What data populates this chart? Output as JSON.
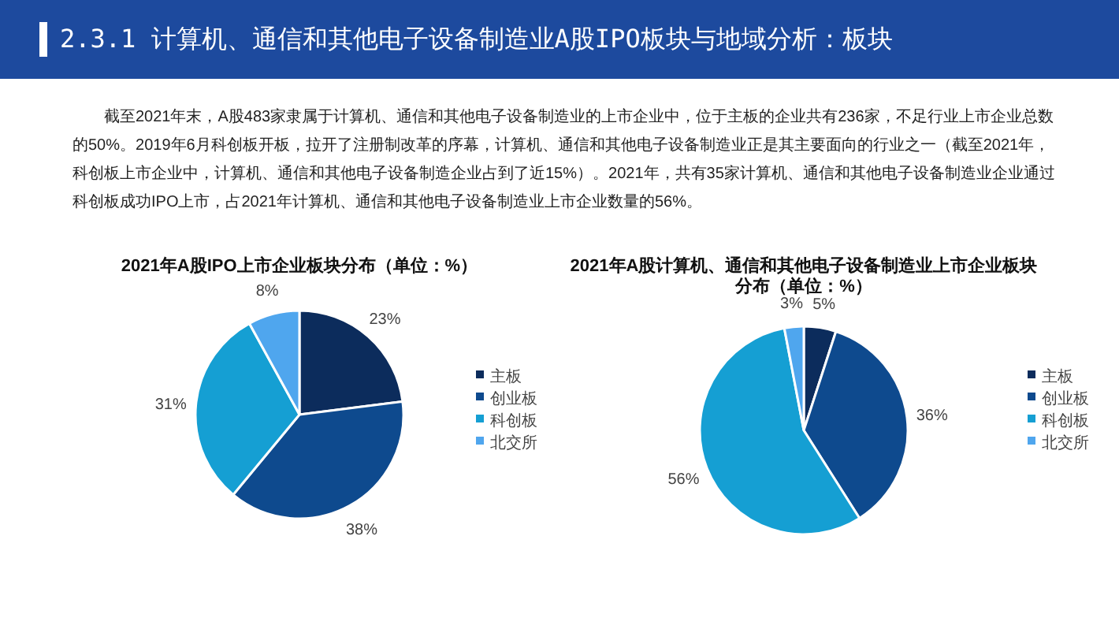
{
  "chart_data": [
    {
      "type": "other",
      "title": "2.3.1 计算机、通信和其他电子设备制造业A股IPO板块与地域分析：板块",
      "annotations": [
        "截至2021年末，A股483家隶属于计算机、通信和其他电子设备制造业的上市企业中，位于主板的企业共有236家，不足行业上市企业总数的50%。2019年6月科创板开板，拉开了注册制改革的序幕，计算机、通信和其他电子设备制造业正是其主要面向的行业之一（截至2021年，科创板上市企业中，计算机、通信和其他电子设备制造企业占到了近15%）。2021年，共有35家计算机、通信和其他电子设备制造业企业通过科创板成功IPO上市，占2021年计算机、通信和其他电子设备制造业上市企业数量的56%。"
      ]
    },
    {
      "type": "pie",
      "title": "2021年A股IPO上市企业板块分布（单位：%）",
      "categories": [
        "主板",
        "创业板",
        "科创板",
        "北交所"
      ],
      "values": [
        23,
        38,
        31,
        8
      ],
      "value_labels": [
        "23%",
        "38%",
        "31%",
        "8%"
      ],
      "colors": [
        "#0c2c5c",
        "#0e4a8e",
        "#159fd3",
        "#4fa6ee"
      ],
      "legend": "right"
    },
    {
      "type": "pie",
      "title": "2021年A股计算机、通信和其他电子设备制造业上市企业板块分布（单位：%）",
      "categories": [
        "主板",
        "创业板",
        "科创板",
        "北交所"
      ],
      "values": [
        5,
        36,
        56,
        3
      ],
      "value_labels": [
        "5%",
        "36%",
        "56%",
        "3%"
      ],
      "colors": [
        "#0c2c5c",
        "#0e4a8e",
        "#159fd3",
        "#4fa6ee"
      ],
      "legend": "right"
    }
  ]
}
